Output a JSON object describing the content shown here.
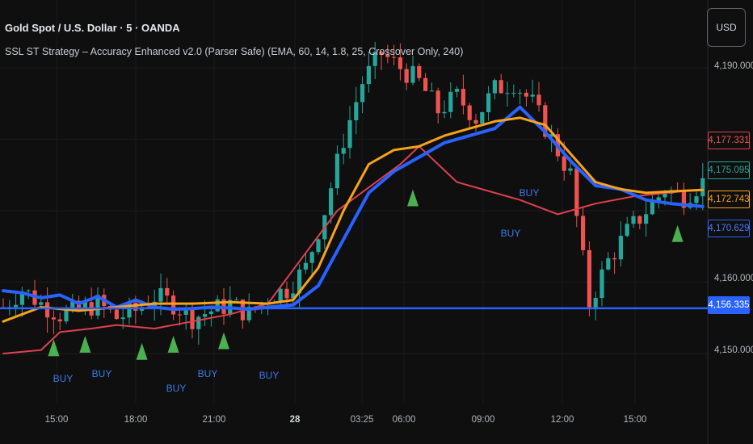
{
  "header": {
    "title": "Gold Spot / U.S. Dollar · 5 · OANDA",
    "subtitle": "SSL ST Strategy – Accuracy Enhanced v2.0 (Parser Safe) (EMA, 60, 14, 1.8, 25, Crossover Only, 240)",
    "currency": "USD"
  },
  "axis": {
    "y_ticks": [
      "4,190.000",
      "4,160.000",
      "4,150.000"
    ],
    "x_ticks": [
      "15:00",
      "18:00",
      "21:00",
      "28",
      "03:25",
      "06:00",
      "09:00",
      "12:00",
      "15:00"
    ]
  },
  "price_tags": {
    "red": "4,177.331",
    "teal": "4,175.095",
    "orange": "4,172.743",
    "blue_outline": "4,170.629",
    "blue_fill": "4,156.335"
  },
  "colors": {
    "up_candle": "#26a69a",
    "down_candle": "#ef5350",
    "ema_orange": "#f7a21b",
    "ssl_blue": "#2962ff",
    "trail_red": "#e04050",
    "buy_marker": "#4caf50",
    "background": "#0f0f0f"
  },
  "buy_signals": [
    {
      "label": "BUY"
    },
    {
      "label": "BUY"
    },
    {
      "label": "BUY"
    },
    {
      "label": "BUY"
    },
    {
      "label": "BUY"
    },
    {
      "label": "BUY"
    },
    {
      "label": "BUY"
    }
  ],
  "chart_data": {
    "type": "candlestick",
    "title": "Gold Spot / U.S. Dollar · 5 · OANDA",
    "ylim": [
      4145,
      4195
    ],
    "x_labels": [
      "15:00",
      "18:00",
      "21:00",
      "28",
      "03:25",
      "06:00",
      "09:00",
      "12:00",
      "15:00"
    ],
    "price_path": [
      [
        0,
        4156.5
      ],
      [
        3,
        4159
      ],
      [
        6,
        4157
      ],
      [
        9,
        4155.5
      ],
      [
        12,
        4156
      ],
      [
        15,
        4157
      ],
      [
        18,
        4155
      ],
      [
        21,
        4156
      ],
      [
        24,
        4158
      ],
      [
        27,
        4157
      ],
      [
        30,
        4155
      ],
      [
        33,
        4156
      ],
      [
        36,
        4157
      ],
      [
        39,
        4155.5
      ],
      [
        42,
        4158
      ],
      [
        45,
        4159
      ],
      [
        48,
        4162
      ],
      [
        51,
        4170
      ],
      [
        54,
        4180
      ],
      [
        57,
        4188
      ],
      [
        60,
        4192
      ],
      [
        63,
        4190
      ],
      [
        66,
        4188
      ],
      [
        69,
        4184
      ],
      [
        72,
        4186
      ],
      [
        75,
        4183
      ],
      [
        78,
        4187
      ],
      [
        81,
        4188
      ],
      [
        84,
        4185
      ],
      [
        87,
        4180
      ],
      [
        90,
        4175
      ],
      [
        93,
        4157
      ],
      [
        96,
        4163
      ],
      [
        99,
        4167
      ],
      [
        102,
        4170
      ],
      [
        105,
        4173
      ],
      [
        108,
        4172
      ],
      [
        111,
        4174
      ]
    ],
    "series": [
      {
        "name": "EMA",
        "values": [
          [
            0,
            4154.5
          ],
          [
            6,
            4156.5
          ],
          [
            12,
            4156
          ],
          [
            18,
            4156.5
          ],
          [
            24,
            4157
          ],
          [
            30,
            4157
          ],
          [
            36,
            4157.2
          ],
          [
            42,
            4157
          ],
          [
            46,
            4157.5
          ],
          [
            50,
            4162
          ],
          [
            54,
            4170
          ],
          [
            58,
            4176.5
          ],
          [
            62,
            4178.5
          ],
          [
            66,
            4179
          ],
          [
            70,
            4180.5
          ],
          [
            74,
            4181.5
          ],
          [
            78,
            4182.5
          ],
          [
            82,
            4183
          ],
          [
            86,
            4182
          ],
          [
            90,
            4178
          ],
          [
            94,
            4174
          ],
          [
            98,
            4173
          ],
          [
            102,
            4172.5
          ],
          [
            106,
            4172.7
          ],
          [
            111,
            4172.9
          ]
        ]
      },
      {
        "name": "SSL",
        "values": [
          [
            0,
            4158.8
          ],
          [
            3,
            4158.5
          ],
          [
            6,
            4157.8
          ],
          [
            9,
            4158.2
          ],
          [
            12,
            4157
          ],
          [
            15,
            4158
          ],
          [
            18,
            4156.5
          ],
          [
            21,
            4157.5
          ],
          [
            24,
            4156.5
          ],
          [
            27,
            4156.2
          ],
          [
            30,
            4156.3
          ],
          [
            33,
            4156.5
          ],
          [
            36,
            4156.4
          ],
          [
            39,
            4156.2
          ],
          [
            42,
            4156.5
          ],
          [
            46,
            4156.8
          ],
          [
            50,
            4159.5
          ],
          [
            54,
            4166
          ],
          [
            58,
            4172.5
          ],
          [
            62,
            4175.5
          ],
          [
            66,
            4177.5
          ],
          [
            70,
            4179.5
          ],
          [
            74,
            4180.5
          ],
          [
            78,
            4181.5
          ],
          [
            82,
            4184.5
          ],
          [
            86,
            4181
          ],
          [
            90,
            4177
          ],
          [
            94,
            4173.5
          ],
          [
            98,
            4173
          ],
          [
            102,
            4171.5
          ],
          [
            106,
            4171
          ],
          [
            111,
            4170.6
          ]
        ]
      },
      {
        "name": "Trail",
        "values": [
          [
            0,
            4150
          ],
          [
            6,
            4150.5
          ],
          [
            9,
            4153
          ],
          [
            14,
            4153.5
          ],
          [
            18,
            4154
          ],
          [
            24,
            4153.5
          ],
          [
            30,
            4154.5
          ],
          [
            36,
            4155.5
          ],
          [
            42,
            4157
          ],
          [
            53,
            4170
          ],
          [
            63,
            4176.5
          ],
          [
            66,
            4179
          ],
          [
            72,
            4174
          ],
          [
            82,
            4171.5
          ],
          [
            88,
            4169.5
          ],
          [
            94,
            4171
          ],
          [
            100,
            4172
          ],
          [
            111,
            4173
          ]
        ]
      }
    ],
    "horizontal_line": {
      "value": 4156.335
    },
    "buy_signals_at": [
      [
        8,
        4152
      ],
      [
        13,
        4152.5
      ],
      [
        22,
        4151.5
      ],
      [
        27,
        4152.5
      ],
      [
        35,
        4153
      ],
      [
        65,
        4173
      ],
      [
        107,
        4168
      ]
    ]
  }
}
